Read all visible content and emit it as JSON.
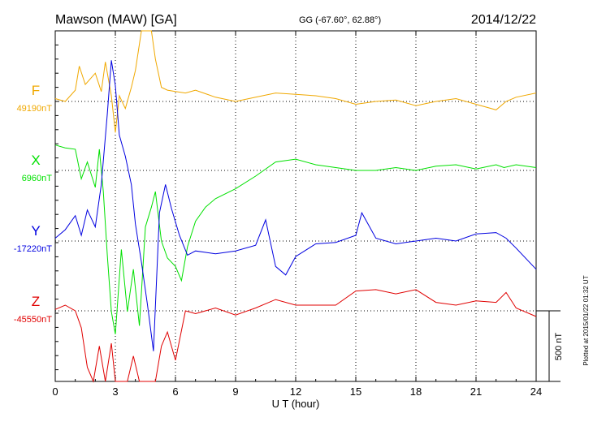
{
  "header": {
    "title": "Mawson (MAW)  [GA]",
    "coords": "GG (-67.60°,  62.88°)",
    "date": "2014/12/22"
  },
  "footer": {
    "plotted": "Plotted at 2015/01/22 01:32 UT"
  },
  "colors": {
    "F": "#f0a800",
    "X": "#00e000",
    "Y": "#0000e0",
    "Z": "#e00000",
    "axis": "#000000",
    "grid": "#000000"
  },
  "chart_data": {
    "type": "line",
    "xlabel": "U T (hour)",
    "xlim": [
      0,
      24
    ],
    "xticks": [
      0,
      3,
      6,
      9,
      12,
      15,
      18,
      21,
      24
    ],
    "scale_bar_label": "500 nT",
    "scale_bar_nT": 500,
    "series": [
      {
        "name": "F",
        "baseline_label": "49190nT",
        "baseline_nT": 49190,
        "x": [
          0,
          0.5,
          1.0,
          1.2,
          1.5,
          2.0,
          2.3,
          2.5,
          2.8,
          3.0,
          3.2,
          3.5,
          3.8,
          4.0,
          4.3,
          4.6,
          4.8,
          5.0,
          5.3,
          5.6,
          6.0,
          6.5,
          7.0,
          8.0,
          9.0,
          10.0,
          11.0,
          12.0,
          13.0,
          14.0,
          15.0,
          16.0,
          17.0,
          18.0,
          19.0,
          20.0,
          21.0,
          22.0,
          22.5,
          23.0,
          24.0
        ],
        "values": [
          20,
          0,
          80,
          250,
          120,
          200,
          70,
          280,
          40,
          -220,
          40,
          -50,
          100,
          220,
          1000,
          1050,
          950,
          300,
          100,
          80,
          70,
          60,
          80,
          30,
          0,
          30,
          60,
          50,
          40,
          20,
          -20,
          0,
          10,
          -30,
          0,
          20,
          -20,
          -60,
          0,
          30,
          60
        ]
      },
      {
        "name": "X",
        "baseline_label": "6960nT",
        "baseline_nT": 6960,
        "x": [
          0,
          0.5,
          1.0,
          1.3,
          1.6,
          2.0,
          2.2,
          2.4,
          2.6,
          2.8,
          3.0,
          3.3,
          3.6,
          3.9,
          4.2,
          4.5,
          4.8,
          5.0,
          5.3,
          5.6,
          6.0,
          6.3,
          6.6,
          7.0,
          7.5,
          8.0,
          9.0,
          10.0,
          11.0,
          12.0,
          13.0,
          14.0,
          15.0,
          16.0,
          17.0,
          18.0,
          19.0,
          20.0,
          21.0,
          22.0,
          22.4,
          23.0,
          24.0
        ],
        "values": [
          180,
          160,
          150,
          -60,
          60,
          -120,
          150,
          -150,
          -600,
          -1000,
          -1160,
          -560,
          -1000,
          -700,
          -1100,
          -400,
          -260,
          -150,
          -500,
          -620,
          -680,
          -780,
          -540,
          -360,
          -260,
          -200,
          -130,
          -40,
          60,
          80,
          40,
          20,
          0,
          0,
          20,
          0,
          30,
          40,
          10,
          40,
          20,
          40,
          20
        ]
      },
      {
        "name": "Y",
        "baseline_label": "-17220nT",
        "baseline_nT": -17220,
        "x": [
          0,
          0.5,
          1.0,
          1.3,
          1.6,
          2.0,
          2.3,
          2.6,
          2.8,
          3.0,
          3.2,
          3.5,
          3.8,
          4.0,
          4.3,
          4.6,
          4.9,
          5.2,
          5.5,
          5.8,
          6.2,
          6.6,
          7.0,
          8.0,
          9.0,
          10.0,
          10.5,
          11.0,
          11.5,
          12.0,
          13.0,
          14.0,
          15.0,
          15.3,
          16.0,
          17.0,
          18.0,
          19.0,
          20.0,
          21.0,
          22.0,
          22.5,
          23.0,
          24.0
        ],
        "values": [
          20,
          80,
          180,
          40,
          220,
          100,
          400,
          900,
          1280,
          1100,
          750,
          600,
          400,
          120,
          -150,
          -450,
          -780,
          200,
          400,
          230,
          40,
          -100,
          -70,
          -90,
          -70,
          -30,
          150,
          -180,
          -240,
          -110,
          -20,
          -10,
          40,
          200,
          20,
          -20,
          0,
          20,
          0,
          50,
          60,
          20,
          -50,
          -200
        ]
      },
      {
        "name": "Z",
        "baseline_label": "-45550nT",
        "baseline_nT": -45550,
        "x": [
          0,
          0.5,
          1.0,
          1.3,
          1.6,
          1.9,
          2.2,
          2.5,
          2.8,
          3.0,
          3.3,
          3.6,
          3.9,
          4.2,
          4.5,
          4.8,
          5.0,
          5.3,
          5.6,
          6.0,
          6.5,
          7.0,
          8.0,
          9.0,
          10.0,
          11.0,
          12.0,
          13.0,
          14.0,
          15.0,
          16.0,
          17.0,
          18.0,
          19.0,
          20.0,
          21.0,
          22.0,
          22.5,
          23.0,
          24.0
        ],
        "values": [
          10,
          40,
          0,
          -120,
          -400,
          -500,
          -250,
          -950,
          -230,
          -600,
          -800,
          -650,
          -320,
          -950,
          -1600,
          -1800,
          -1200,
          -250,
          -150,
          -350,
          0,
          -20,
          20,
          -30,
          20,
          80,
          40,
          40,
          40,
          140,
          150,
          120,
          150,
          60,
          40,
          70,
          60,
          130,
          20,
          -40
        ]
      }
    ]
  }
}
